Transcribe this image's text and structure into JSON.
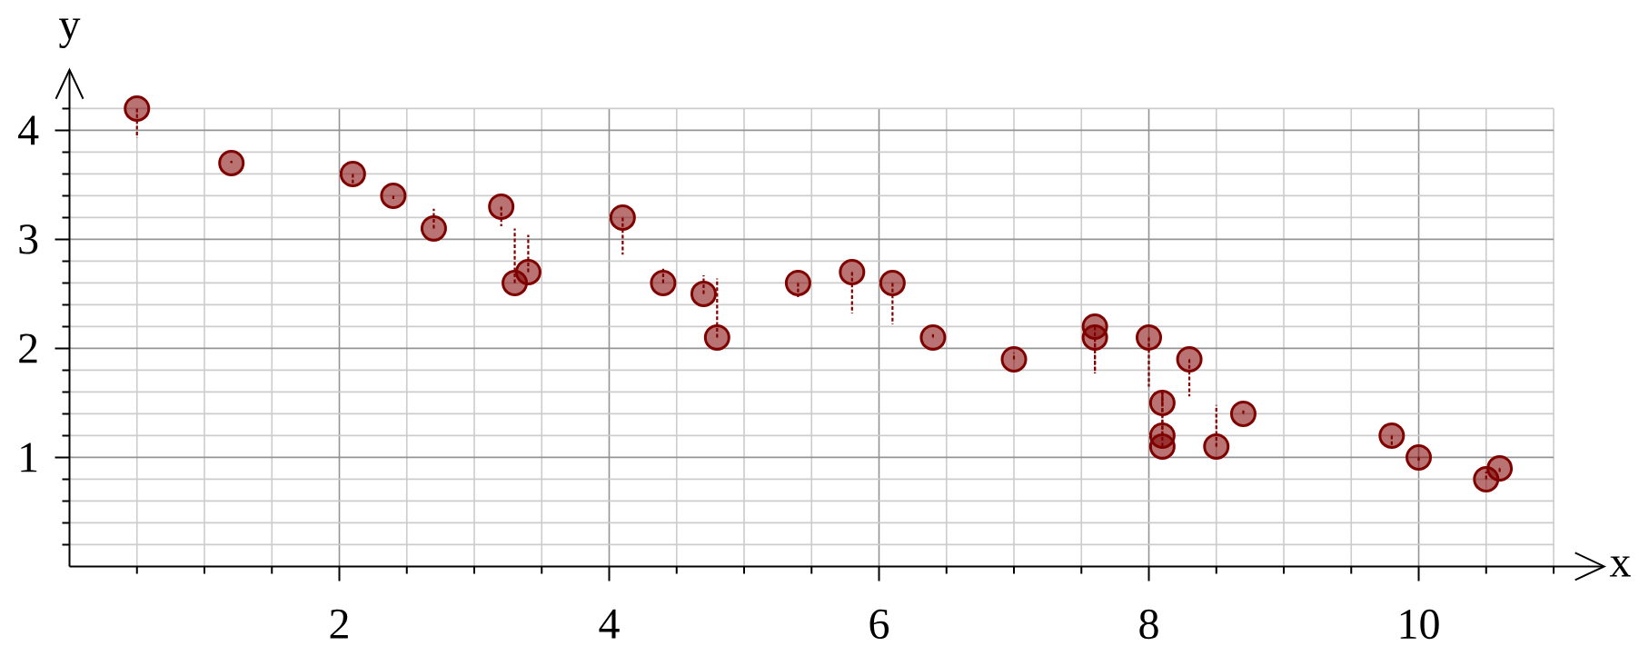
{
  "chart_data": {
    "type": "scatter",
    "xlabel": "x",
    "ylabel": "y",
    "x": [
      0.5,
      1.2,
      2.1,
      2.4,
      2.7,
      3.2,
      3.3,
      3.4,
      4.1,
      4.4,
      4.7,
      4.8,
      5.4,
      5.8,
      6.1,
      6.4,
      7.0,
      7.6,
      7.6,
      8.0,
      8.1,
      8.1,
      8.1,
      8.3,
      8.5,
      8.7,
      9.8,
      10,
      10.5,
      10.6
    ],
    "values": [
      4.2,
      3.7,
      3.6,
      3.4,
      3.1,
      3.3,
      2.6,
      2.7,
      3.2,
      2.6,
      2.5,
      2.1,
      2.6,
      2.7,
      2.6,
      2.1,
      1.9,
      2.2,
      2.1,
      2.1,
      1.5,
      1.2,
      1.1,
      1.9,
      1.1,
      1.4,
      1.2,
      1.0,
      0.8,
      0.9
    ],
    "errors": [
      [
        3.93,
        4.2
      ],
      [
        3.7,
        3.72
      ],
      [
        3.48,
        3.6
      ],
      [
        3.37,
        3.4
      ],
      [
        3.1,
        3.28
      ],
      [
        3.12,
        3.3
      ],
      [
        2.6,
        3.1
      ],
      [
        2.7,
        3.04
      ],
      [
        2.86,
        3.2
      ],
      [
        2.6,
        2.73
      ],
      [
        2.5,
        2.67
      ],
      [
        2.1,
        2.64
      ],
      [
        2.47,
        2.6
      ],
      [
        2.32,
        2.7
      ],
      [
        2.22,
        2.6
      ],
      [
        2.1,
        2.13
      ],
      [
        1.9,
        1.96
      ],
      [
        1.77,
        2.2
      ],
      [
        1.77,
        2.1
      ],
      [
        1.65,
        2.1
      ],
      [
        1.5,
        1.62
      ],
      [
        1.2,
        1.62
      ],
      [
        1.1,
        1.62
      ],
      [
        1.56,
        1.9
      ],
      [
        1.1,
        1.48
      ],
      [
        1.4,
        1.43
      ],
      [
        1.11,
        1.2
      ],
      [
        0.97,
        1.0
      ],
      [
        0.8,
        0.87
      ],
      [
        0.86,
        0.9
      ]
    ],
    "color": "#800000",
    "marker": "circle",
    "grid": true,
    "xlim": [
      0,
      11
    ],
    "ylim": [
      0,
      4.2
    ],
    "xticks": [
      {
        "value": 0.5,
        "label": null
      },
      {
        "value": 1,
        "label": null
      },
      {
        "value": 1.5,
        "label": null
      },
      2,
      {
        "value": 2.5,
        "label": null
      },
      {
        "value": 3,
        "label": null
      },
      {
        "value": 3.5,
        "label": null
      },
      4,
      {
        "value": 4.5,
        "label": null
      },
      {
        "value": 5,
        "label": null
      },
      {
        "value": 5.5,
        "label": null
      },
      6,
      {
        "value": 6.5,
        "label": null
      },
      {
        "value": 7,
        "label": null
      },
      {
        "value": 7.5,
        "label": null
      },
      8,
      {
        "value": 8.5,
        "label": null
      },
      {
        "value": 9,
        "label": null
      },
      {
        "value": 9.5,
        "label": null
      },
      10,
      {
        "value": 10.5,
        "label": null
      },
      {
        "value": 11,
        "label": null
      }
    ],
    "yticks": [
      {
        "value": 0.2,
        "label": null
      },
      {
        "value": 0.4,
        "label": null
      },
      {
        "value": 0.6,
        "label": null
      },
      {
        "value": 0.8,
        "label": null
      },
      1,
      {
        "value": 1.2,
        "label": null
      },
      {
        "value": 1.4,
        "label": null
      },
      {
        "value": 1.6,
        "label": null
      },
      {
        "value": 1.8,
        "label": null
      },
      2,
      {
        "value": 2.2,
        "label": null
      },
      {
        "value": 2.4,
        "label": null
      },
      {
        "value": 2.6,
        "label": null
      },
      {
        "value": 2.8,
        "label": null
      },
      3,
      {
        "value": 3.2,
        "label": null
      },
      {
        "value": 3.4,
        "label": null
      },
      {
        "value": 3.6,
        "label": null
      },
      {
        "value": 3.8,
        "label": null
      },
      4,
      {
        "value": 4.2,
        "label": null
      }
    ]
  }
}
